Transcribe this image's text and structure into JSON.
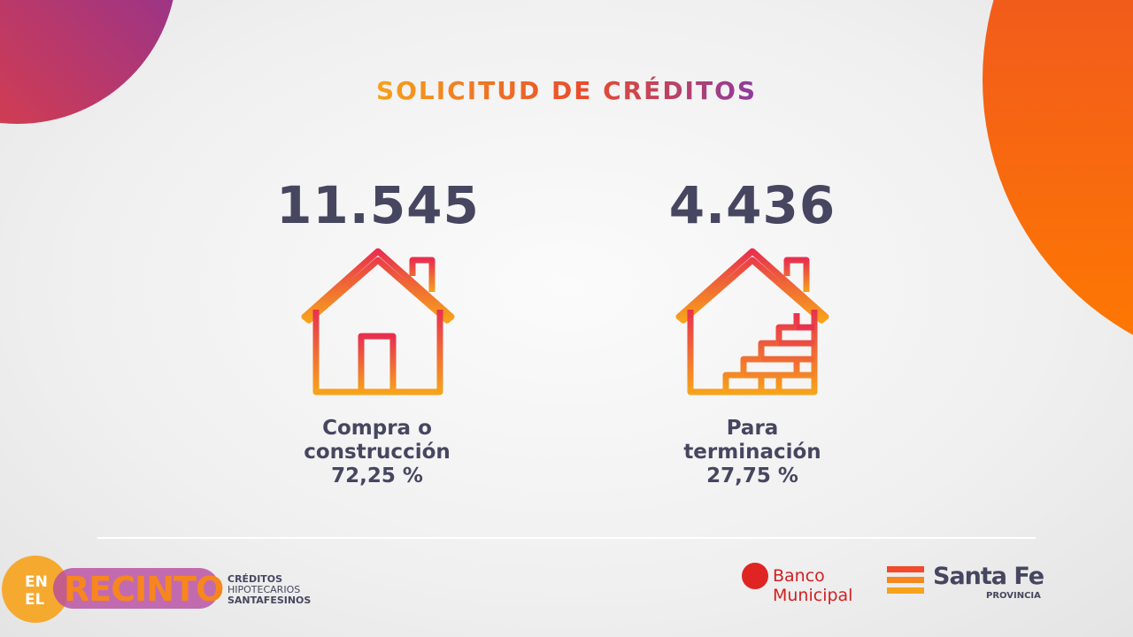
{
  "title": "SOLICITUD DE CRÉDITOS",
  "items": [
    {
      "number": "11.545",
      "label_lines": [
        "Compra o",
        "construcción"
      ],
      "percent": "72,25 %"
    },
    {
      "number": "4.436",
      "label_lines": [
        "Para",
        "terminación"
      ],
      "percent": "27,75 %"
    }
  ],
  "footer": {
    "program": {
      "overlay_lines": [
        "EN",
        "EL"
      ],
      "overlay_word": "RECINTO",
      "name_lines": [
        "CRÉDITOS",
        "HIPOTECARIOS",
        "SANTAFESINOS"
      ]
    },
    "bank": {
      "name_lines": [
        "Banco",
        "Municipal"
      ]
    },
    "province": {
      "name": "Santa Fe",
      "subtitle": "PROVINCIA"
    }
  }
}
